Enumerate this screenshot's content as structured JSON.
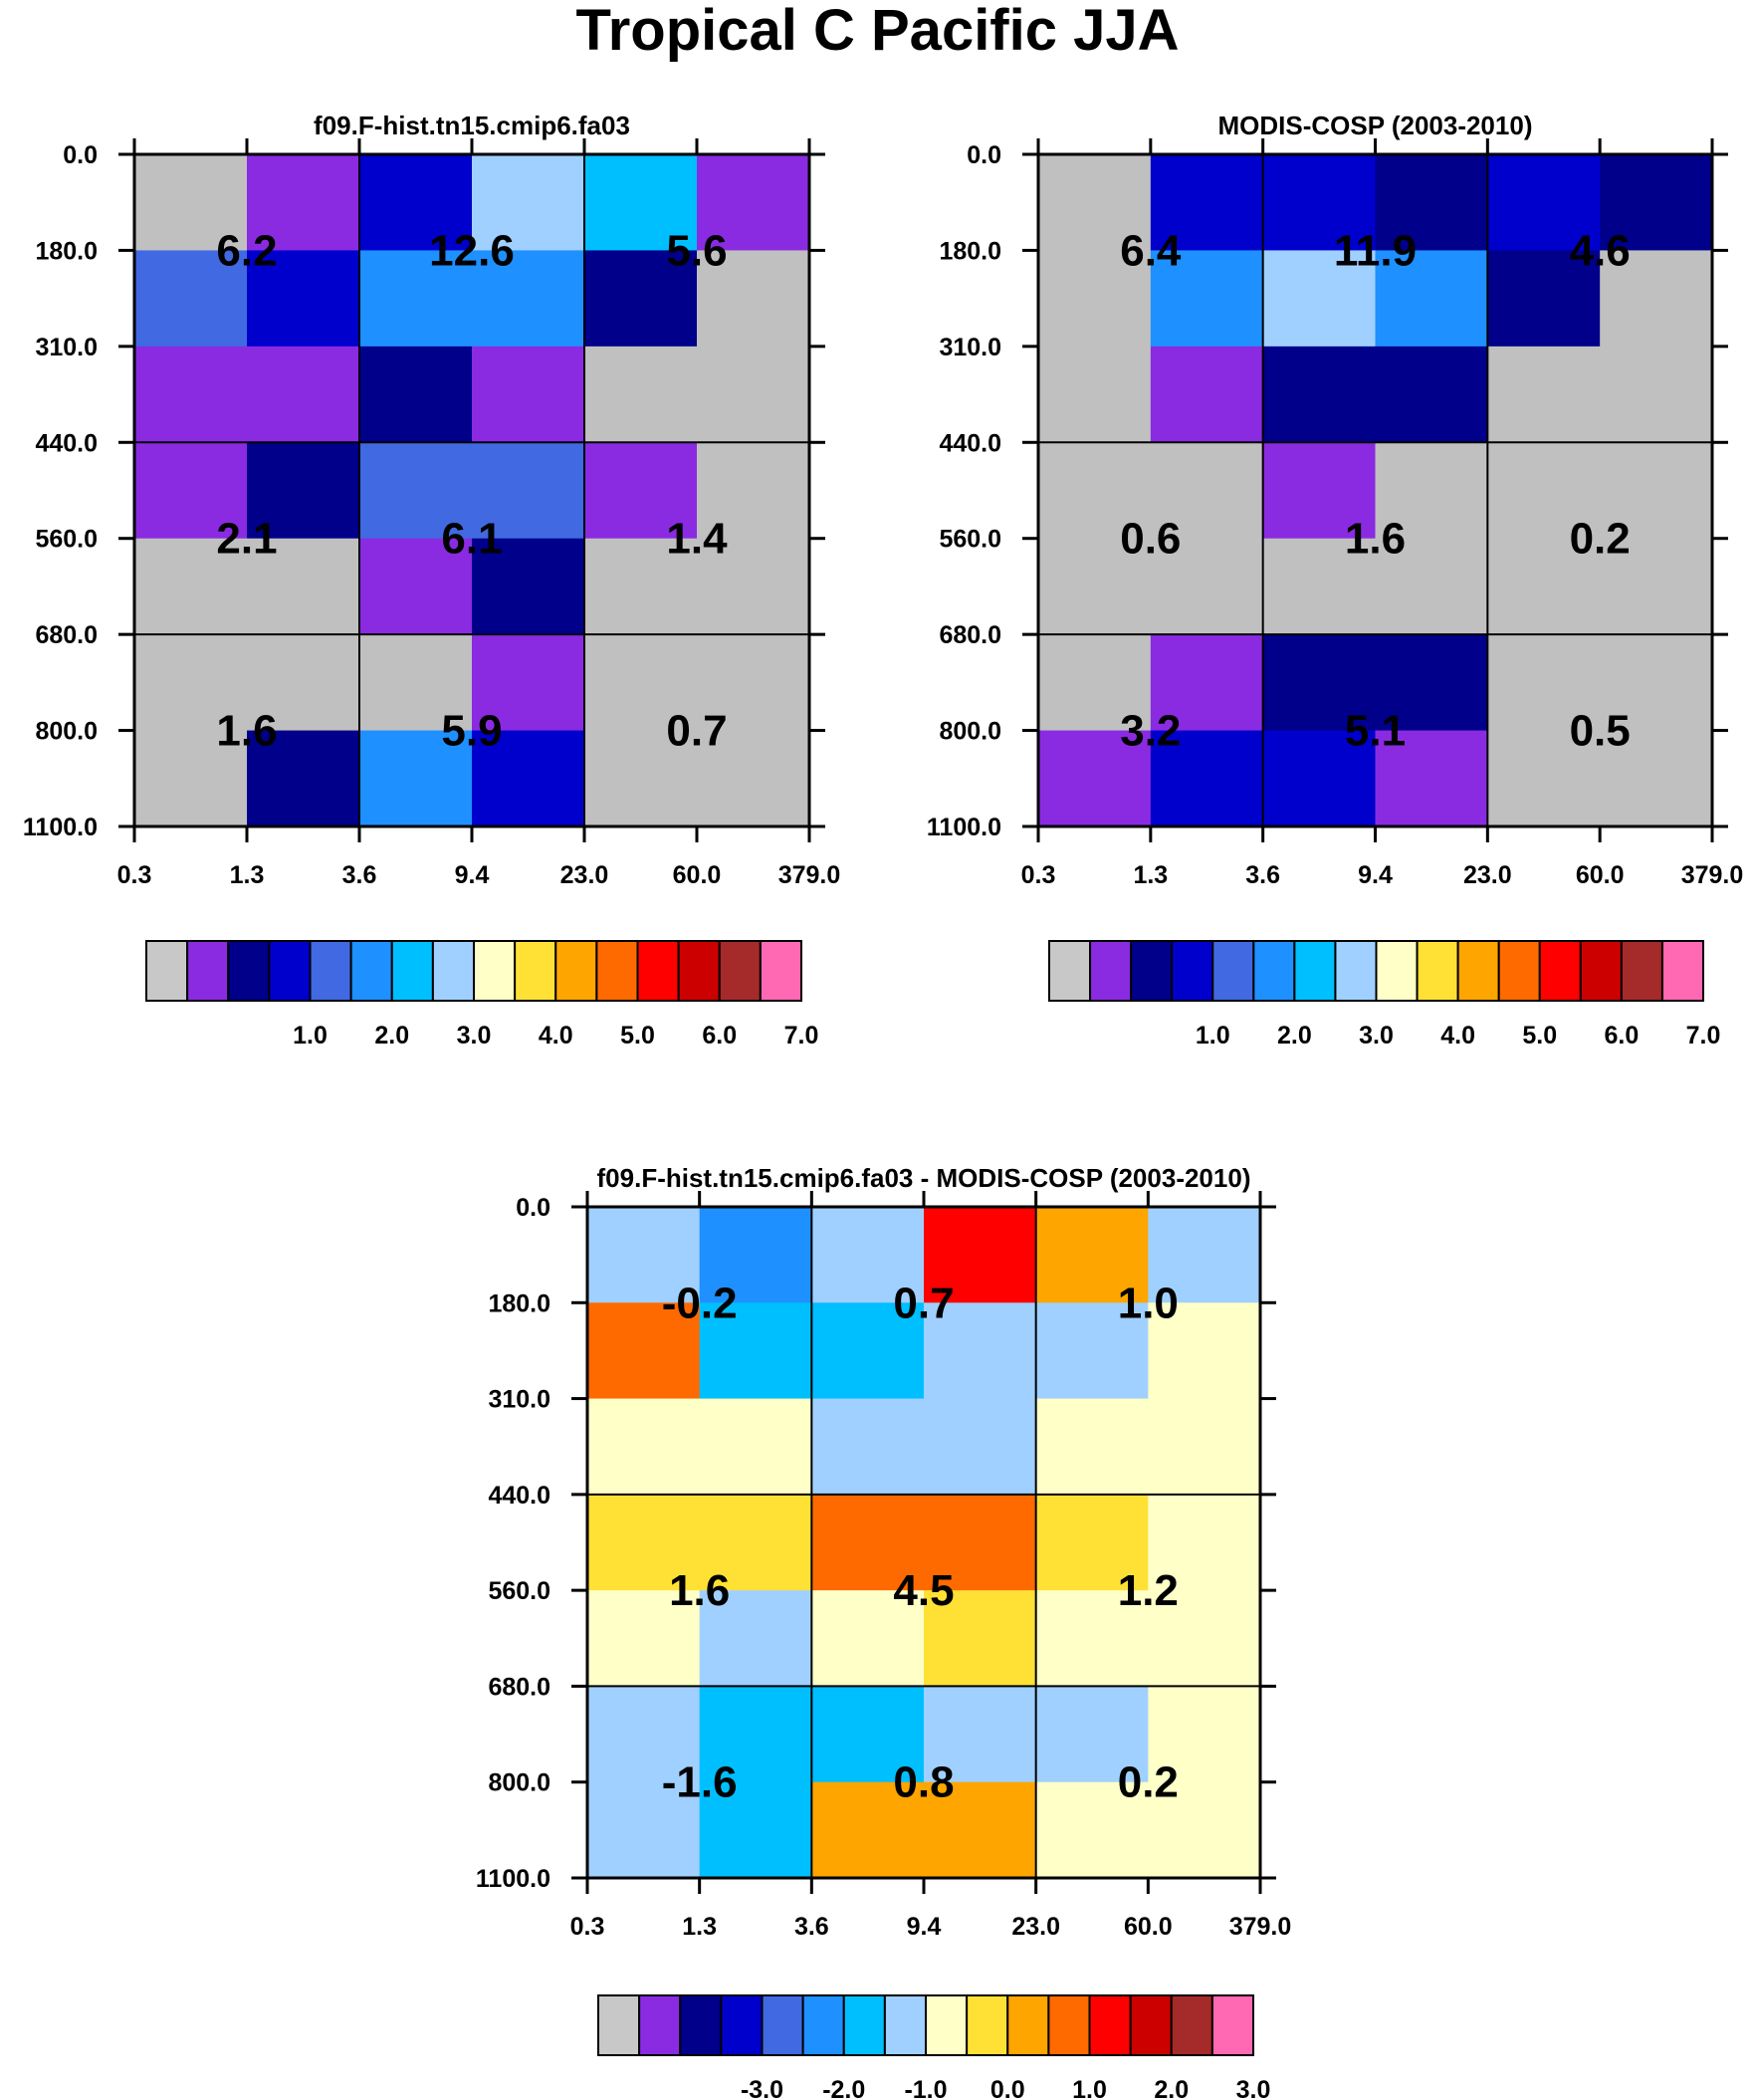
{
  "figure": {
    "title": "Tropical C Pacific JJA"
  },
  "chart_data": [
    {
      "type": "heatmap",
      "title": "f09.F-hist.tn15.cmip6.fa03",
      "x_ticks": [
        "0.3",
        "1.3",
        "3.6",
        "9.4",
        "23.0",
        "60.0",
        "379.0"
      ],
      "y_ticks": [
        "0.0",
        "180.0",
        "310.0",
        "440.0",
        "560.0",
        "680.0",
        "800.0",
        "1100.0"
      ],
      "grid_colors": [
        [
          "#C0C0C0",
          "#8A2BE2",
          "#0000CD",
          "#A0D0FF",
          "#00BFFF",
          "#8A2BE2"
        ],
        [
          "#4169E1",
          "#0000CD",
          "#1E90FF",
          "#1E90FF",
          "#00008B",
          "#C0C0C0"
        ],
        [
          "#8A2BE2",
          "#8A2BE2",
          "#00008B",
          "#8A2BE2",
          "#C0C0C0",
          "#C0C0C0"
        ],
        [
          "#8A2BE2",
          "#00008B",
          "#4169E1",
          "#4169E1",
          "#8A2BE2",
          "#C0C0C0"
        ],
        [
          "#C0C0C0",
          "#C0C0C0",
          "#8A2BE2",
          "#00008B",
          "#C0C0C0",
          "#C0C0C0"
        ],
        [
          "#C0C0C0",
          "#C0C0C0",
          "#C0C0C0",
          "#8A2BE2",
          "#C0C0C0",
          "#C0C0C0"
        ],
        [
          "#C0C0C0",
          "#00008B",
          "#1E90FF",
          "#0000CD",
          "#C0C0C0",
          "#C0C0C0"
        ]
      ],
      "block_values": [
        [
          "6.2",
          "12.6",
          "5.6"
        ],
        [
          "2.1",
          "6.1",
          "1.4"
        ],
        [
          "1.6",
          "5.9",
          "0.7"
        ]
      ],
      "colorbar_labels": [
        "1.0",
        "2.0",
        "3.0",
        "4.0",
        "5.0",
        "6.0",
        "7.0"
      ]
    },
    {
      "type": "heatmap",
      "title": "MODIS-COSP (2003-2010)",
      "x_ticks": [
        "0.3",
        "1.3",
        "3.6",
        "9.4",
        "23.0",
        "60.0",
        "379.0"
      ],
      "y_ticks": [
        "0.0",
        "180.0",
        "310.0",
        "440.0",
        "560.0",
        "680.0",
        "800.0",
        "1100.0"
      ],
      "grid_colors": [
        [
          "#C0C0C0",
          "#0000CD",
          "#0000CD",
          "#00008B",
          "#0000CD",
          "#00008B"
        ],
        [
          "#C0C0C0",
          "#1E90FF",
          "#A0D0FF",
          "#1E90FF",
          "#00008B",
          "#C0C0C0"
        ],
        [
          "#C0C0C0",
          "#8A2BE2",
          "#00008B",
          "#00008B",
          "#C0C0C0",
          "#C0C0C0"
        ],
        [
          "#C0C0C0",
          "#C0C0C0",
          "#8A2BE2",
          "#C0C0C0",
          "#C0C0C0",
          "#C0C0C0"
        ],
        [
          "#C0C0C0",
          "#C0C0C0",
          "#C0C0C0",
          "#C0C0C0",
          "#C0C0C0",
          "#C0C0C0"
        ],
        [
          "#C0C0C0",
          "#8A2BE2",
          "#00008B",
          "#00008B",
          "#C0C0C0",
          "#C0C0C0"
        ],
        [
          "#8A2BE2",
          "#0000CD",
          "#0000CD",
          "#8A2BE2",
          "#C0C0C0",
          "#C0C0C0"
        ]
      ],
      "block_values": [
        [
          "6.4",
          "11.9",
          "4.6"
        ],
        [
          "0.6",
          "1.6",
          "0.2"
        ],
        [
          "3.2",
          "5.1",
          "0.5"
        ]
      ],
      "colorbar_labels": [
        "1.0",
        "2.0",
        "3.0",
        "4.0",
        "5.0",
        "6.0",
        "7.0"
      ]
    },
    {
      "type": "heatmap",
      "title": "f09.F-hist.tn15.cmip6.fa03 - MODIS-COSP (2003-2010)",
      "x_ticks": [
        "0.3",
        "1.3",
        "3.6",
        "9.4",
        "23.0",
        "60.0",
        "379.0"
      ],
      "y_ticks": [
        "0.0",
        "180.0",
        "310.0",
        "440.0",
        "560.0",
        "680.0",
        "800.0",
        "1100.0"
      ],
      "grid_colors": [
        [
          "#A0D0FF",
          "#1E90FF",
          "#A0D0FF",
          "#FF0000",
          "#FFA500",
          "#A0D0FF"
        ],
        [
          "#FF6A00",
          "#00BFFF",
          "#00BFFF",
          "#A0D0FF",
          "#A0D0FF",
          "#FFFFC8"
        ],
        [
          "#FFFFC8",
          "#FFFFC8",
          "#A0D0FF",
          "#A0D0FF",
          "#FFFFC8",
          "#FFFFC8"
        ],
        [
          "#FFE135",
          "#FFE135",
          "#FF6A00",
          "#FF6A00",
          "#FFE135",
          "#FFFFC8"
        ],
        [
          "#FFFFC8",
          "#A0D0FF",
          "#FFFFC8",
          "#FFE135",
          "#FFFFC8",
          "#FFFFC8"
        ],
        [
          "#A0D0FF",
          "#00BFFF",
          "#00BFFF",
          "#A0D0FF",
          "#A0D0FF",
          "#FFFFC8"
        ],
        [
          "#A0D0FF",
          "#00BFFF",
          "#FFA500",
          "#FFA500",
          "#FFFFC8",
          "#FFFFC8"
        ]
      ],
      "block_values": [
        [
          "-0.2",
          "0.7",
          "1.0"
        ],
        [
          "1.6",
          "4.5",
          "1.2"
        ],
        [
          "-1.6",
          "0.8",
          "0.2"
        ]
      ],
      "colorbar_labels": [
        "-3.0",
        "-2.0",
        "-1.0",
        "0.0",
        "1.0",
        "2.0",
        "3.0"
      ]
    }
  ],
  "colorbar_colors": [
    "#C8C8C8",
    "#8A2BE2",
    "#00008B",
    "#0000CD",
    "#4169E1",
    "#1E90FF",
    "#00BFFF",
    "#A0D0FF",
    "#FFFFC8",
    "#FFE135",
    "#FFA500",
    "#FF6A00",
    "#FF0000",
    "#CD0000",
    "#A52A2A",
    "#FF69B4"
  ]
}
